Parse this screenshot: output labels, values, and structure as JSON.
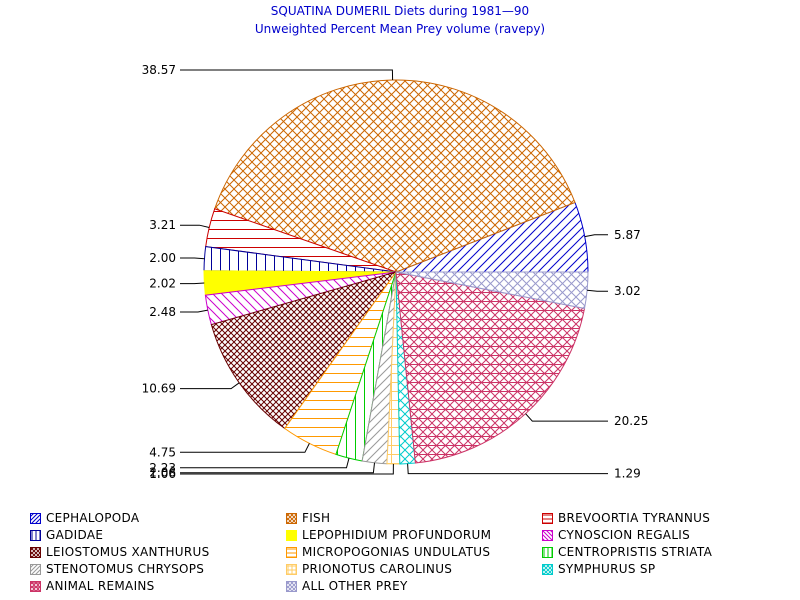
{
  "titles": {
    "line1": "SQUATINA DUMERIL Diets during 1981—90",
    "line2": "Unweighted Percent Mean Prey volume (ravepy)"
  },
  "chart_data": {
    "type": "pie",
    "title": "SQUATINA DUMERIL Diets during 1981—90",
    "subtitle": "Unweighted Percent Mean Prey volume (ravepy)",
    "legend_position": "bottom",
    "slices": [
      {
        "name": "CEPHALOPODA",
        "value": 5.87,
        "label": "5.87",
        "color": "#0000cc",
        "pattern": "diag-up"
      },
      {
        "name": "FISH",
        "value": 38.57,
        "label": "38.57",
        "color": "#cc6600",
        "pattern": "crosshatch"
      },
      {
        "name": "BREVOORTIA TYRANNUS",
        "value": 3.21,
        "label": "3.21",
        "color": "#cc0000",
        "pattern": "horizontal"
      },
      {
        "name": "GADIDAE",
        "value": 2.0,
        "label": "2.00",
        "color": "#000099",
        "pattern": "vertical"
      },
      {
        "name": "LEPOPHIDIUM PROFUNDORUM",
        "value": 2.02,
        "label": "2.02",
        "color": "#ffff00",
        "pattern": "solid"
      },
      {
        "name": "CYNOSCION REGALIS",
        "value": 2.48,
        "label": "2.48",
        "color": "#cc00cc",
        "pattern": "diag-down"
      },
      {
        "name": "LEIOSTOMUS XANTHURUS",
        "value": 10.69,
        "label": "10.69",
        "color": "#660000",
        "pattern": "crosshatch-dense"
      },
      {
        "name": "MICROPOGONIAS UNDULATUS",
        "value": 4.75,
        "label": "4.75",
        "color": "#ff9900",
        "pattern": "horizontal"
      },
      {
        "name": "CENTROPRISTIS STRIATA",
        "value": 2.23,
        "label": "2.23",
        "color": "#00cc00",
        "pattern": "vertical"
      },
      {
        "name": "STENOTOMUS CHRYSOPS",
        "value": 2.06,
        "label": "2.06",
        "color": "#999999",
        "pattern": "diag-up"
      },
      {
        "name": "PRIONOTUS CAROLINUS",
        "value": 1.06,
        "label": "1.06",
        "color": "#ffcc66",
        "pattern": "grid"
      },
      {
        "name": "SYMPHURUS SP",
        "value": 1.29,
        "label": "1.29",
        "color": "#00cccc",
        "pattern": "crosshatch"
      },
      {
        "name": "ANIMAL REMAINS",
        "value": 20.25,
        "label": "20.25",
        "color": "#cc3366",
        "pattern": "grid-diag"
      },
      {
        "name": "ALL OTHER PREY",
        "value": 3.02,
        "label": "3.02",
        "color": "#9999cc",
        "pattern": "crosshatch"
      }
    ]
  }
}
